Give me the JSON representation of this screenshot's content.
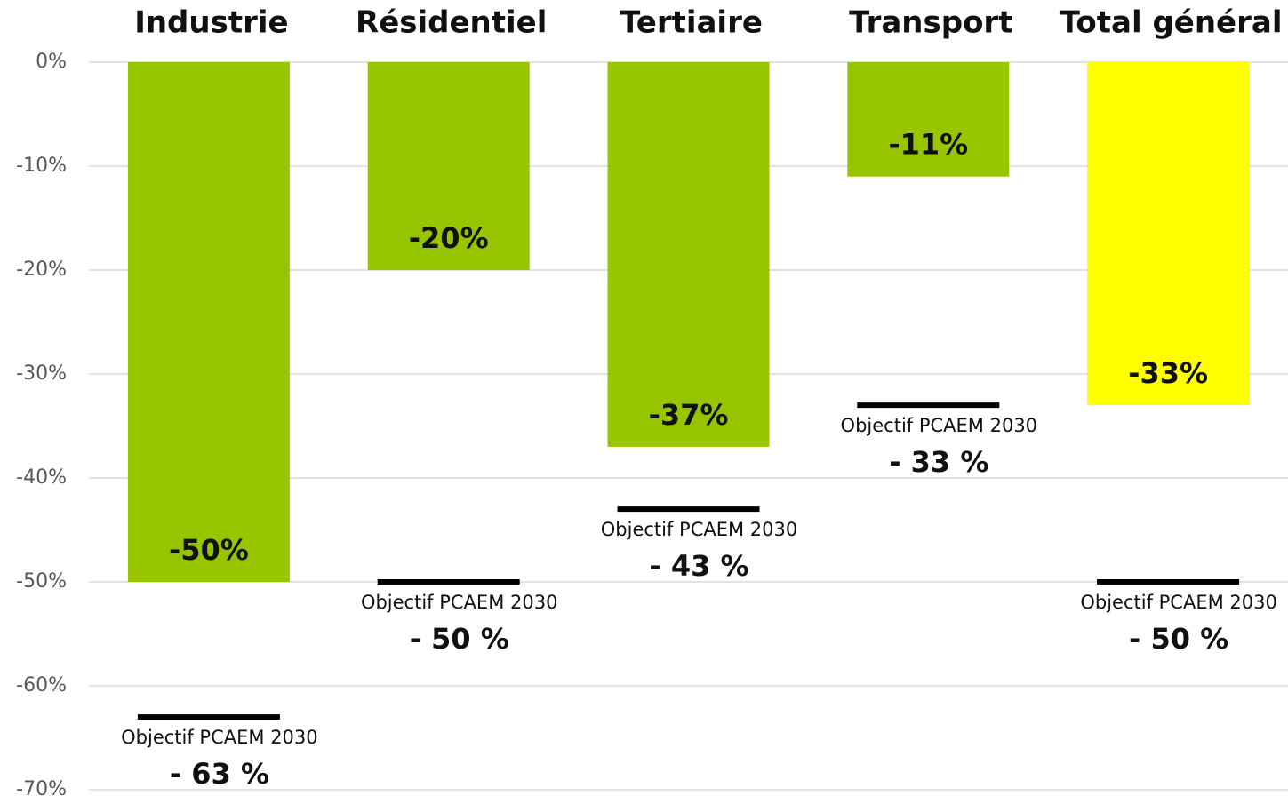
{
  "chart_data": {
    "type": "bar",
    "categories": [
      "Industrie",
      "Résidentiel",
      "Tertiaire",
      "Transport",
      "Total général"
    ],
    "values": [
      -50,
      -20,
      -37,
      -11,
      -33
    ],
    "value_labels": [
      "-50%",
      "-20%",
      "-37%",
      "-11%",
      "-33%"
    ],
    "colors": [
      "#97c600",
      "#97c600",
      "#97c600",
      "#97c600",
      "#ffff00"
    ],
    "targets": {
      "name": "Objectif PCAEM 2030",
      "color": "#000000",
      "values": [
        -63,
        -50,
        -43,
        -33,
        -50
      ],
      "value_labels": [
        "- 63 %",
        "- 50 %",
        "- 43 %",
        "- 33 %",
        "- 50 %"
      ]
    },
    "ylim": [
      -70,
      0
    ],
    "yticks": [
      {
        "value": 0,
        "label": "0%"
      },
      {
        "value": -10,
        "label": "-10%"
      },
      {
        "value": -20,
        "label": "-20%"
      },
      {
        "value": -30,
        "label": "-30%"
      },
      {
        "value": -40,
        "label": "-40%"
      },
      {
        "value": -50,
        "label": "-50%"
      },
      {
        "value": -60,
        "label": "-60%"
      },
      {
        "value": -70,
        "label": "-70%"
      }
    ],
    "grid": true
  }
}
